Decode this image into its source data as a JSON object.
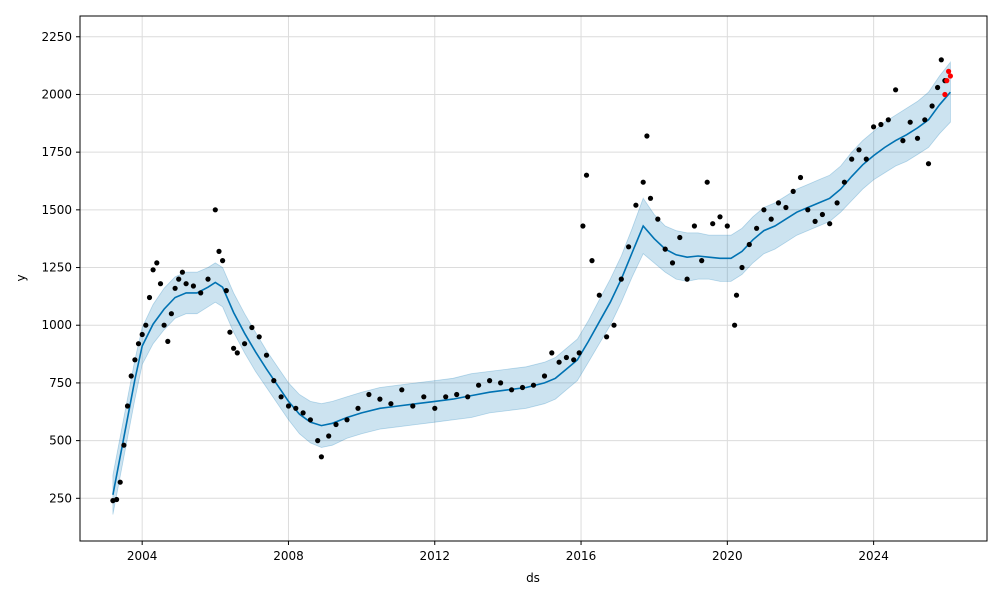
{
  "chart_data": {
    "type": "scatter",
    "title": "",
    "xlabel": "ds",
    "ylabel": "y",
    "xlim": [
      2002.3,
      2027.1
    ],
    "ylim": [
      65,
      2340
    ],
    "x_ticks": [
      2004,
      2008,
      2012,
      2016,
      2020,
      2024
    ],
    "x_tick_labels": [
      "2004",
      "2008",
      "2012",
      "2016",
      "2020",
      "2024"
    ],
    "y_ticks": [
      250,
      500,
      750,
      1000,
      1250,
      1500,
      1750,
      2000,
      2250
    ],
    "y_tick_labels": [
      "250",
      "500",
      "750",
      "1000",
      "1250",
      "1500",
      "1750",
      "2000",
      "2250"
    ],
    "grid": true,
    "colors": {
      "observed": "#000000",
      "forecast_points": "#ff0000",
      "trend_line": "#0072B2",
      "uncertainty_band": "#0072B2"
    },
    "series": [
      {
        "role": "uncertainty_band",
        "x": [
          2003.2,
          2003.5,
          2003.8,
          2004.0,
          2004.3,
          2004.6,
          2004.9,
          2005.2,
          2005.5,
          2005.8,
          2006.0,
          2006.2,
          2006.5,
          2006.8,
          2007.1,
          2007.4,
          2007.7,
          2008.0,
          2008.3,
          2008.6,
          2008.9,
          2009.2,
          2009.6,
          2010.0,
          2010.5,
          2011.0,
          2011.5,
          2012.0,
          2012.5,
          2013.0,
          2013.5,
          2014.0,
          2014.5,
          2015.0,
          2015.3,
          2015.6,
          2015.9,
          2016.2,
          2016.5,
          2016.8,
          2017.1,
          2017.4,
          2017.7,
          2018.0,
          2018.3,
          2018.6,
          2018.9,
          2019.2,
          2019.5,
          2019.8,
          2020.1,
          2020.4,
          2020.7,
          2021.0,
          2021.3,
          2021.6,
          2021.9,
          2022.2,
          2022.5,
          2022.8,
          2023.1,
          2023.4,
          2023.7,
          2024.0,
          2024.3,
          2024.6,
          2024.9,
          2025.2,
          2025.5,
          2025.8,
          2026.1
        ],
        "lower": [
          180,
          430,
          680,
          830,
          920,
          980,
          1030,
          1050,
          1050,
          1080,
          1100,
          1080,
          970,
          880,
          800,
          730,
          660,
          590,
          530,
          490,
          470,
          480,
          510,
          530,
          550,
          560,
          570,
          580,
          590,
          600,
          620,
          630,
          640,
          660,
          680,
          720,
          760,
          840,
          920,
          1000,
          1100,
          1210,
          1310,
          1270,
          1230,
          1200,
          1190,
          1200,
          1200,
          1190,
          1190,
          1220,
          1270,
          1310,
          1330,
          1360,
          1390,
          1410,
          1430,
          1450,
          1490,
          1540,
          1590,
          1630,
          1660,
          1690,
          1710,
          1740,
          1770,
          1830,
          1880
        ],
        "upper": [
          350,
          600,
          850,
          990,
          1090,
          1160,
          1210,
          1230,
          1230,
          1250,
          1270,
          1250,
          1140,
          1050,
          970,
          890,
          820,
          750,
          700,
          670,
          660,
          670,
          690,
          710,
          730,
          740,
          750,
          760,
          770,
          790,
          800,
          810,
          820,
          840,
          860,
          900,
          940,
          1020,
          1110,
          1200,
          1300,
          1420,
          1550,
          1480,
          1430,
          1410,
          1400,
          1400,
          1390,
          1390,
          1390,
          1420,
          1470,
          1510,
          1530,
          1560,
          1590,
          1610,
          1630,
          1650,
          1690,
          1750,
          1800,
          1840,
          1880,
          1910,
          1940,
          1970,
          2010,
          2080,
          2140
        ]
      },
      {
        "role": "trend_line",
        "x": [
          2003.2,
          2003.5,
          2003.8,
          2004.0,
          2004.3,
          2004.6,
          2004.9,
          2005.2,
          2005.5,
          2005.8,
          2006.0,
          2006.2,
          2006.5,
          2006.8,
          2007.1,
          2007.4,
          2007.7,
          2008.0,
          2008.3,
          2008.6,
          2008.9,
          2009.2,
          2009.6,
          2010.0,
          2010.5,
          2011.0,
          2011.5,
          2012.0,
          2012.5,
          2013.0,
          2013.5,
          2014.0,
          2014.5,
          2015.0,
          2015.3,
          2015.6,
          2015.9,
          2016.2,
          2016.5,
          2016.8,
          2017.1,
          2017.4,
          2017.7,
          2018.0,
          2018.3,
          2018.6,
          2018.9,
          2019.2,
          2019.5,
          2019.8,
          2020.1,
          2020.4,
          2020.7,
          2021.0,
          2021.3,
          2021.6,
          2021.9,
          2022.2,
          2022.5,
          2022.8,
          2023.1,
          2023.4,
          2023.7,
          2024.0,
          2024.3,
          2024.6,
          2024.9,
          2025.2,
          2025.5,
          2025.8,
          2026.1
        ],
        "y": [
          265,
          515,
          765,
          910,
          1005,
          1070,
          1120,
          1140,
          1140,
          1165,
          1185,
          1165,
          1055,
          965,
          885,
          810,
          740,
          670,
          615,
          580,
          565,
          575,
          600,
          620,
          640,
          650,
          660,
          670,
          680,
          695,
          710,
          720,
          730,
          750,
          770,
          810,
          850,
          930,
          1015,
          1100,
          1200,
          1315,
          1430,
          1375,
          1330,
          1305,
          1295,
          1300,
          1295,
          1290,
          1290,
          1320,
          1370,
          1410,
          1430,
          1460,
          1490,
          1510,
          1530,
          1550,
          1590,
          1645,
          1695,
          1735,
          1770,
          1800,
          1825,
          1855,
          1890,
          1955,
          2010
        ]
      },
      {
        "role": "observed",
        "x": [
          2003.2,
          2003.3,
          2003.4,
          2003.5,
          2003.6,
          2003.7,
          2003.8,
          2003.9,
          2004.0,
          2004.1,
          2004.2,
          2004.3,
          2004.4,
          2004.5,
          2004.6,
          2004.7,
          2004.8,
          2004.9,
          2005.0,
          2005.1,
          2005.2,
          2005.4,
          2005.6,
          2005.8,
          2006.0,
          2006.1,
          2006.2,
          2006.3,
          2006.4,
          2006.5,
          2006.6,
          2006.8,
          2007.0,
          2007.2,
          2007.4,
          2007.6,
          2007.8,
          2008.0,
          2008.2,
          2008.4,
          2008.6,
          2008.8,
          2008.9,
          2009.1,
          2009.3,
          2009.6,
          2009.9,
          2010.2,
          2010.5,
          2010.8,
          2011.1,
          2011.4,
          2011.7,
          2012.0,
          2012.3,
          2012.6,
          2012.9,
          2013.2,
          2013.5,
          2013.8,
          2014.1,
          2014.4,
          2014.7,
          2015.0,
          2015.2,
          2015.4,
          2015.6,
          2015.8,
          2015.95,
          2016.05,
          2016.15,
          2016.3,
          2016.5,
          2016.7,
          2016.9,
          2017.1,
          2017.3,
          2017.5,
          2017.7,
          2017.8,
          2017.9,
          2018.1,
          2018.3,
          2018.5,
          2018.7,
          2018.9,
          2019.1,
          2019.3,
          2019.45,
          2019.6,
          2019.8,
          2020.0,
          2020.2,
          2020.25,
          2020.4,
          2020.6,
          2020.8,
          2021.0,
          2021.2,
          2021.4,
          2021.6,
          2021.8,
          2022.0,
          2022.2,
          2022.4,
          2022.6,
          2022.8,
          2023.0,
          2023.2,
          2023.4,
          2023.6,
          2023.8,
          2024.0,
          2024.2,
          2024.4,
          2024.6,
          2024.8,
          2025.0,
          2025.2,
          2025.4,
          2025.5,
          2025.6,
          2025.75,
          2025.85,
          2025.95
        ],
        "y": [
          240,
          245,
          320,
          480,
          650,
          780,
          850,
          920,
          960,
          1000,
          1120,
          1240,
          1270,
          1180,
          1000,
          930,
          1050,
          1160,
          1200,
          1230,
          1180,
          1170,
          1140,
          1200,
          1500,
          1320,
          1280,
          1150,
          970,
          900,
          880,
          920,
          990,
          950,
          870,
          760,
          690,
          650,
          640,
          620,
          590,
          500,
          430,
          520,
          570,
          590,
          640,
          700,
          680,
          660,
          720,
          650,
          690,
          640,
          690,
          700,
          690,
          740,
          760,
          750,
          720,
          730,
          740,
          780,
          880,
          840,
          860,
          850,
          880,
          1430,
          1650,
          1280,
          1130,
          950,
          1000,
          1200,
          1340,
          1520,
          1620,
          1820,
          1550,
          1460,
          1330,
          1270,
          1380,
          1200,
          1430,
          1280,
          1620,
          1440,
          1470,
          1430,
          1000,
          1130,
          1250,
          1350,
          1420,
          1500,
          1460,
          1530,
          1510,
          1580,
          1640,
          1500,
          1450,
          1480,
          1440,
          1530,
          1620,
          1720,
          1760,
          1720,
          1860,
          1870,
          1890,
          2020,
          1800,
          1880,
          1810,
          1890,
          1700,
          1950,
          2030,
          2150,
          2060
        ]
      },
      {
        "role": "forecast_points",
        "x": [
          2025.95,
          2026.0,
          2026.05,
          2026.1
        ],
        "y": [
          2000,
          2060,
          2100,
          2080
        ]
      }
    ]
  }
}
